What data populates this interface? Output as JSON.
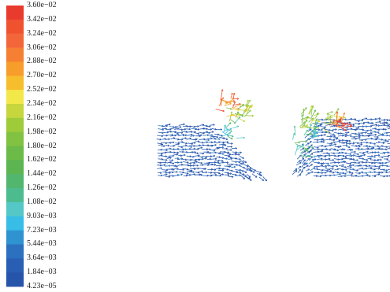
{
  "chart_data": {
    "type": "vector-field",
    "colormap": "rainbow",
    "legend_position": "left",
    "legend_ticks": [
      "3.60e−02",
      "3.42e−02",
      "3.24e−02",
      "3.06e−02",
      "2.88e−02",
      "2.70e−02",
      "2.52e−02",
      "2.34e−02",
      "2.16e−02",
      "1.98e−02",
      "1.80e−02",
      "1.62e−02",
      "1.44e−02",
      "1.26e−02",
      "1.08e−02",
      "9.03e−03",
      "7.23e−03",
      "5.44e−03",
      "3.64e−03",
      "1.84e−03",
      "4.23e−05"
    ],
    "legend_colors": [
      "#e83a2d",
      "#f05230",
      "#f2663a",
      "#f57f32",
      "#f79d2b",
      "#f6bd2c",
      "#f3e84a",
      "#c6d63c",
      "#9ecb3a",
      "#82c243",
      "#6cbb49",
      "#5db552",
      "#52b66e",
      "#4cbc8f",
      "#55c7c7",
      "#37bde6",
      "#2f93d2",
      "#2c70c0",
      "#285fb4",
      "#2654aa"
    ],
    "value_min": 4.23e-05,
    "value_max": 0.036
  }
}
